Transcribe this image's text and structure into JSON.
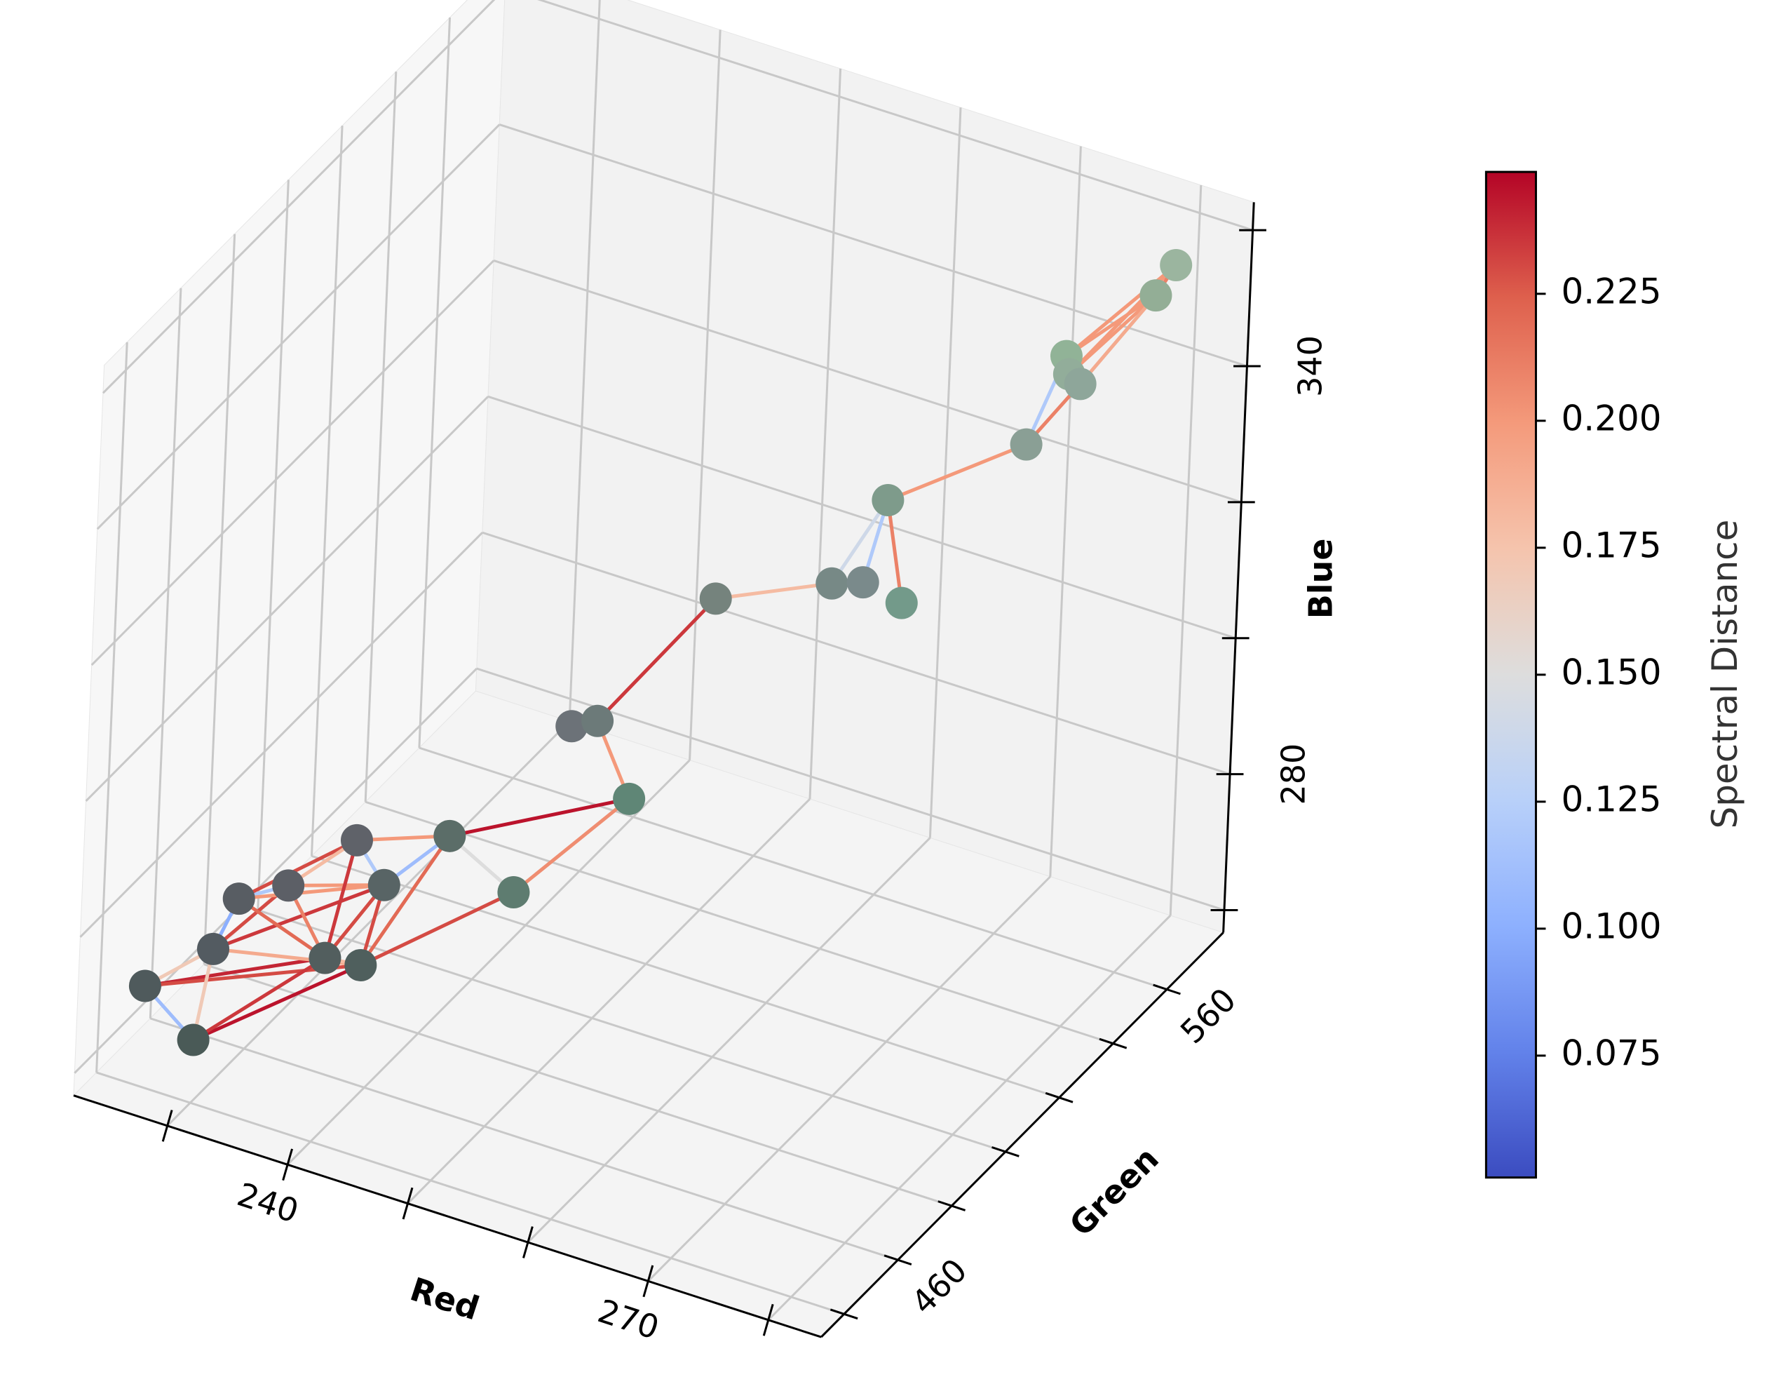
{
  "chart_data": {
    "type": "scatter3d",
    "xlabel": "Red",
    "ylabel": "Green",
    "zlabel": "Blue",
    "xlim": [
      222.2,
      284.4
    ],
    "ylim": [
      431.5,
      581
    ],
    "zlim": [
      256.7,
      364.1
    ],
    "xticks": [
      240,
      270
    ],
    "xminorticks": [
      230,
      250,
      260,
      280
    ],
    "yticks": [
      460,
      560
    ],
    "yminorticks": [
      440,
      480,
      500,
      520,
      540
    ],
    "zticks": [
      280,
      340
    ],
    "zminorticks": [
      260,
      300,
      320,
      360
    ],
    "grid": true,
    "x": [
      222.0,
      227.6,
      225.2,
      225.3,
      228.0,
      232.8,
      235.5,
      230.3,
      234.0,
      237.1,
      242.2,
      247.7,
      242.8,
      244.5,
      250.0,
      258.4,
      260.7,
      263.2,
      260.8,
      270.1,
      272.4,
      273.3,
      274.2,
      277.9,
      278.5
    ],
    "y": [
      458.4,
      451.5,
      469.1,
      477.8,
      484.0,
      476.7,
      477.9,
      499.0,
      492.8,
      502.8,
      504.4,
      521.7,
      521.4,
      523.3,
      541.2,
      546.3,
      547.5,
      551.0,
      555.4,
      564.2,
      567.5,
      564.6,
      564.8,
      575.2,
      579.7
    ],
    "z": [
      262,
      260,
      265,
      269,
      270,
      265,
      265,
      272,
      270,
      275,
      269,
      279,
      287,
      288,
      302,
      307,
      308,
      305,
      317,
      327,
      340,
      339,
      338,
      349,
      352
    ],
    "colors": [
      "#4f5a5c",
      "#4a5a57",
      "#535b61",
      "#585d63",
      "#5c5f66",
      "#525e5e",
      "#4f5f5d",
      "#5f6269",
      "#586465",
      "#5b6d68",
      "#5e7c70",
      "#5f8676",
      "#6c7278",
      "#6c7a79",
      "#75837d",
      "#778986",
      "#7a8a8b",
      "#739a8a",
      "#7e9b8b",
      "#8a9f95",
      "#91b397",
      "#92ad9a",
      "#8ea69a",
      "#93ae96",
      "#9bb59f"
    ],
    "edges": [
      {
        "source": 0,
        "target": 1,
        "value": 0.11
      },
      {
        "source": 0,
        "target": 5,
        "value": 0.24
      },
      {
        "source": 0,
        "target": 2,
        "value": 0.17
      },
      {
        "source": 0,
        "target": 6,
        "value": 0.23
      },
      {
        "source": 1,
        "target": 6,
        "value": 0.245
      },
      {
        "source": 1,
        "target": 5,
        "value": 0.235
      },
      {
        "source": 1,
        "target": 2,
        "value": 0.17
      },
      {
        "source": 2,
        "target": 3,
        "value": 0.1
      },
      {
        "source": 2,
        "target": 4,
        "value": 0.23
      },
      {
        "source": 2,
        "target": 8,
        "value": 0.235
      },
      {
        "source": 2,
        "target": 6,
        "value": 0.19
      },
      {
        "source": 3,
        "target": 4,
        "value": 0.12
      },
      {
        "source": 3,
        "target": 7,
        "value": 0.23
      },
      {
        "source": 3,
        "target": 8,
        "value": 0.2
      },
      {
        "source": 4,
        "target": 7,
        "value": 0.18
      },
      {
        "source": 4,
        "target": 5,
        "value": 0.21
      },
      {
        "source": 4,
        "target": 8,
        "value": 0.2
      },
      {
        "source": 5,
        "target": 8,
        "value": 0.23
      },
      {
        "source": 5,
        "target": 7,
        "value": 0.235
      },
      {
        "source": 6,
        "target": 9,
        "value": 0.22
      },
      {
        "source": 6,
        "target": 8,
        "value": 0.23
      },
      {
        "source": 7,
        "target": 9,
        "value": 0.2
      },
      {
        "source": 7,
        "target": 8,
        "value": 0.12
      },
      {
        "source": 8,
        "target": 9,
        "value": 0.11
      },
      {
        "source": 9,
        "target": 10,
        "value": 0.15
      },
      {
        "source": 9,
        "target": 11,
        "value": 0.245
      },
      {
        "source": 10,
        "target": 11,
        "value": 0.205
      },
      {
        "source": 10,
        "target": 6,
        "value": 0.23
      },
      {
        "source": 11,
        "target": 13,
        "value": 0.2
      },
      {
        "source": 12,
        "target": 13,
        "value": 0.16
      },
      {
        "source": 13,
        "target": 14,
        "value": 0.235
      },
      {
        "source": 14,
        "target": 15,
        "value": 0.18
      },
      {
        "source": 15,
        "target": 18,
        "value": 0.14
      },
      {
        "source": 16,
        "target": 18,
        "value": 0.12
      },
      {
        "source": 15,
        "target": 16,
        "value": 0.16
      },
      {
        "source": 17,
        "target": 18,
        "value": 0.21
      },
      {
        "source": 19,
        "target": 18,
        "value": 0.2
      },
      {
        "source": 19,
        "target": 20,
        "value": 0.12
      },
      {
        "source": 19,
        "target": 22,
        "value": 0.21
      },
      {
        "source": 20,
        "target": 23,
        "value": 0.2
      },
      {
        "source": 21,
        "target": 23,
        "value": 0.2
      },
      {
        "source": 22,
        "target": 23,
        "value": 0.19
      },
      {
        "source": 20,
        "target": 24,
        "value": 0.2
      },
      {
        "source": 21,
        "target": 24,
        "value": 0.2
      },
      {
        "source": 23,
        "target": 24,
        "value": 0.21
      },
      {
        "source": 3,
        "target": 5,
        "value": 0.22
      },
      {
        "source": 5,
        "target": 6,
        "value": 0.18
      }
    ],
    "colormap": "coolwarm",
    "clabel": "Spectral Distance",
    "clim": [
      0.051,
      0.249
    ],
    "cticks": [
      0.075,
      {
        "value": 0.1,
        "label": "0.100"
      },
      0.125,
      {
        "value": 0.15,
        "label": "0.150"
      },
      0.175,
      {
        "value": 0.2,
        "label": "0.200"
      },
      0.225
    ]
  }
}
